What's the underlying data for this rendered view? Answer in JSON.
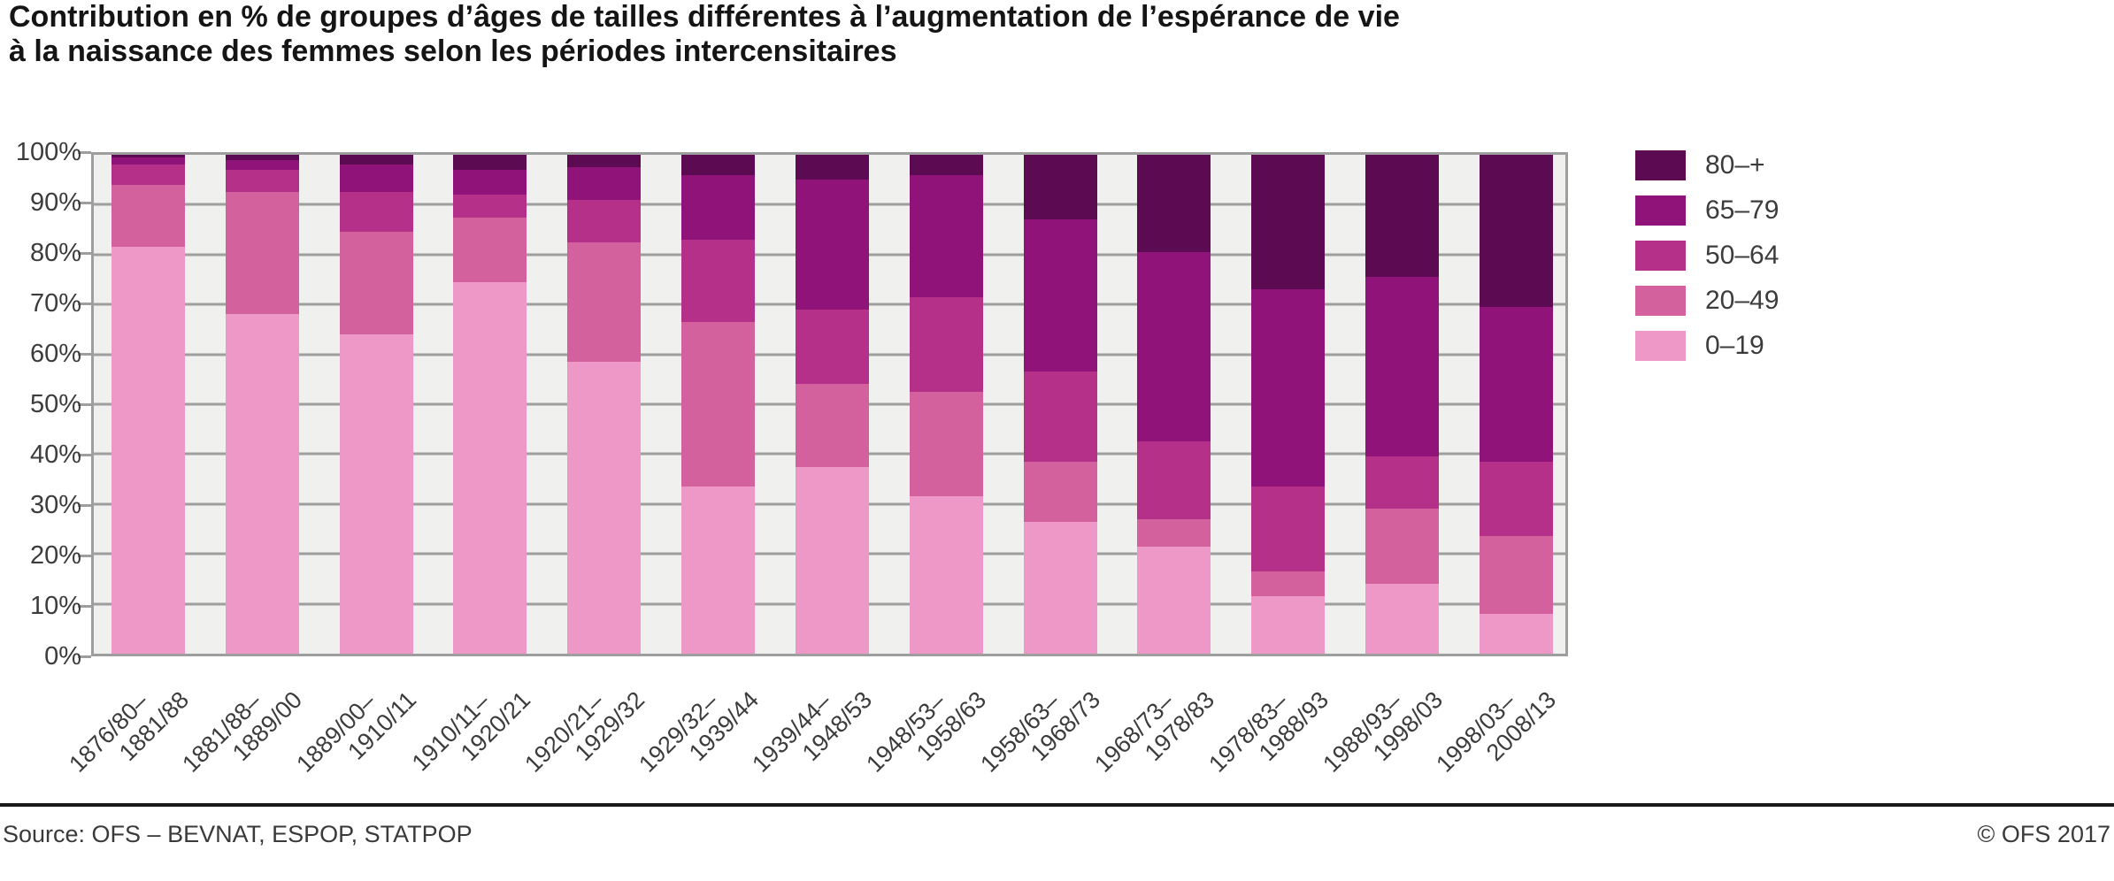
{
  "title": {
    "line1": "Contribution en % de groupes d’âges de tailles différentes à l’augmentation de l’espérance de vie",
    "line2": "à la naissance des femmes selon les périodes intercensitaires"
  },
  "y_axis": {
    "ticks": [
      "100%",
      "90%",
      "80%",
      "70%",
      "60%",
      "50%",
      "40%",
      "30%",
      "20%",
      "10%",
      "0%"
    ]
  },
  "legend": [
    {
      "label": "80–+",
      "color": "#5c0a51"
    },
    {
      "label": "65–79",
      "color": "#8f1378"
    },
    {
      "label": "50–64",
      "color": "#b43089"
    },
    {
      "label": "20–49",
      "color": "#d2619e"
    },
    {
      "label": "0–19",
      "color": "#ee98c7"
    }
  ],
  "footer": {
    "source": "Source: OFS – BEVNAT, ESPOP, STATPOP",
    "copyright": "© OFS 2017"
  },
  "chart_data": {
    "type": "bar",
    "variant": "stacked-percent",
    "title": "Contribution en % de groupes d’âges de tailles différentes à l’augmentation de l’espérance de vie à la naissance des femmes selon les périodes intercensitaires",
    "xlabel": "",
    "ylabel": "%",
    "ylim": [
      0,
      100
    ],
    "grid": true,
    "legend_position": "right",
    "plot_background": "#f0f0ee",
    "gridline_color": "#9e9e9e",
    "categories": [
      [
        "1876/80–",
        "1881/88"
      ],
      [
        "1881/88–",
        "1889/00"
      ],
      [
        "1889/00–",
        "1910/11"
      ],
      [
        "1910/11–",
        "1920/21"
      ],
      [
        "1920/21–",
        "1929/32"
      ],
      [
        "1929/32–",
        "1939/44"
      ],
      [
        "1939/44–",
        "1948/53"
      ],
      [
        "1948/53–",
        "1958/63"
      ],
      [
        "1958/63–",
        "1968/73"
      ],
      [
        "1968/73–",
        "1978/83"
      ],
      [
        "1978/83–",
        "1988/93"
      ],
      [
        "1988/93–",
        "1998/03"
      ],
      [
        "1998/03–",
        "2008/13"
      ]
    ],
    "series": [
      {
        "name": "0–19",
        "color": "#ee98c7",
        "values": [
          81.5,
          68.0,
          64.0,
          74.5,
          58.5,
          33.5,
          37.5,
          31.5,
          26.5,
          21.5,
          11.5,
          14.0,
          8.0
        ]
      },
      {
        "name": "20–49",
        "color": "#d2619e",
        "values": [
          12.5,
          24.5,
          20.5,
          13.0,
          24.0,
          33.0,
          16.5,
          21.0,
          12.0,
          5.5,
          5.0,
          15.0,
          15.5
        ]
      },
      {
        "name": "50–64",
        "color": "#b43089",
        "values": [
          4.0,
          4.5,
          8.0,
          4.5,
          8.5,
          16.5,
          15.0,
          19.0,
          18.0,
          15.5,
          17.0,
          10.5,
          15.0
        ]
      },
      {
        "name": "65–79",
        "color": "#8f1378",
        "values": [
          1.5,
          2.0,
          5.5,
          5.0,
          6.5,
          13.0,
          26.0,
          24.5,
          30.5,
          38.0,
          39.5,
          36.0,
          31.0
        ]
      },
      {
        "name": "80–+",
        "color": "#5c0a51",
        "values": [
          0.5,
          1.0,
          2.0,
          3.0,
          2.5,
          4.0,
          5.0,
          4.0,
          13.0,
          19.5,
          27.0,
          24.5,
          30.5
        ]
      }
    ]
  }
}
